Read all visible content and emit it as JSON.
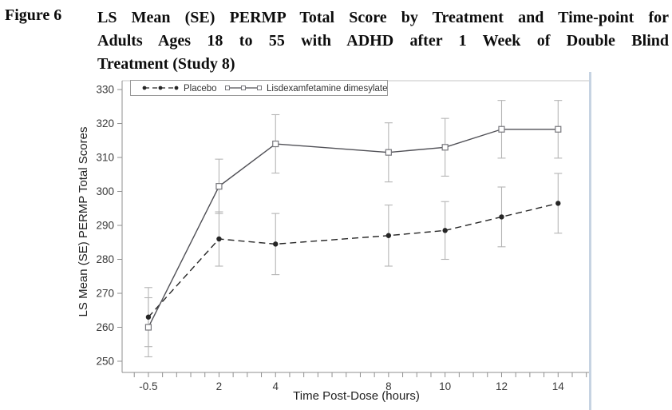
{
  "figure_label": "Figure 6",
  "title_lines": [
    "LS Mean (SE) PERMP Total Score by Treatment and Time-point for",
    "Adults Ages 18 to 55 with ADHD after 1 Week of Double Blind",
    "Treatment (Study 8)"
  ],
  "chart_data": {
    "type": "line",
    "title": "",
    "xlabel": "Time Post-Dose (hours)",
    "ylabel": "LS Mean (SE) PERMP Total Scores",
    "xlim": [
      -1.43,
      15.15
    ],
    "ylim": [
      246.7,
      332.6
    ],
    "x_minor_tick_start": -1,
    "x_minor_tick_end": 15,
    "x_minor_tick_step": 0.5,
    "x_labeled_ticks": [
      -0.5,
      2,
      4,
      8,
      10,
      12,
      14
    ],
    "x_tick_labels": [
      "-0.5",
      "2",
      "4",
      "8",
      "10",
      "12",
      "14"
    ],
    "y_ticks": [
      250,
      260,
      270,
      280,
      290,
      300,
      310,
      320,
      330
    ],
    "y_tick_labels": [
      "250",
      "260",
      "270",
      "280",
      "290",
      "300",
      "310",
      "320",
      "330"
    ],
    "grid": false,
    "legend_position": "top-left-inside",
    "x": [
      -0.5,
      2,
      4,
      8,
      10,
      12,
      14
    ],
    "series": [
      {
        "name": "Placebo",
        "line_style": "dashed",
        "marker": "filled-circle",
        "color": "#262626",
        "values": [
          263,
          286,
          284.5,
          287,
          288.5,
          292.5,
          296.5
        ],
        "se": [
          8.7,
          8.0,
          9.0,
          9.0,
          8.5,
          8.8,
          8.8
        ]
      },
      {
        "name": "Lisdexamfetamine dimesylate",
        "line_style": "solid",
        "marker": "open-square",
        "color": "#4f4f55",
        "values": [
          260,
          301.5,
          314,
          311.5,
          313,
          318.3,
          318.3
        ],
        "se": [
          8.7,
          8.0,
          8.6,
          8.7,
          8.5,
          8.5,
          8.5
        ]
      }
    ],
    "error_bar_color": "#b5b5b5",
    "axis_color": "#8f8f8f",
    "frame_top_color": "#c4c4c4",
    "tick_label_color": "#3a3a3a",
    "axis_title_color": "#1f1f1f",
    "legend_border_color": "#9a9a9a",
    "artifact_line_color": "#c6d3e2"
  }
}
